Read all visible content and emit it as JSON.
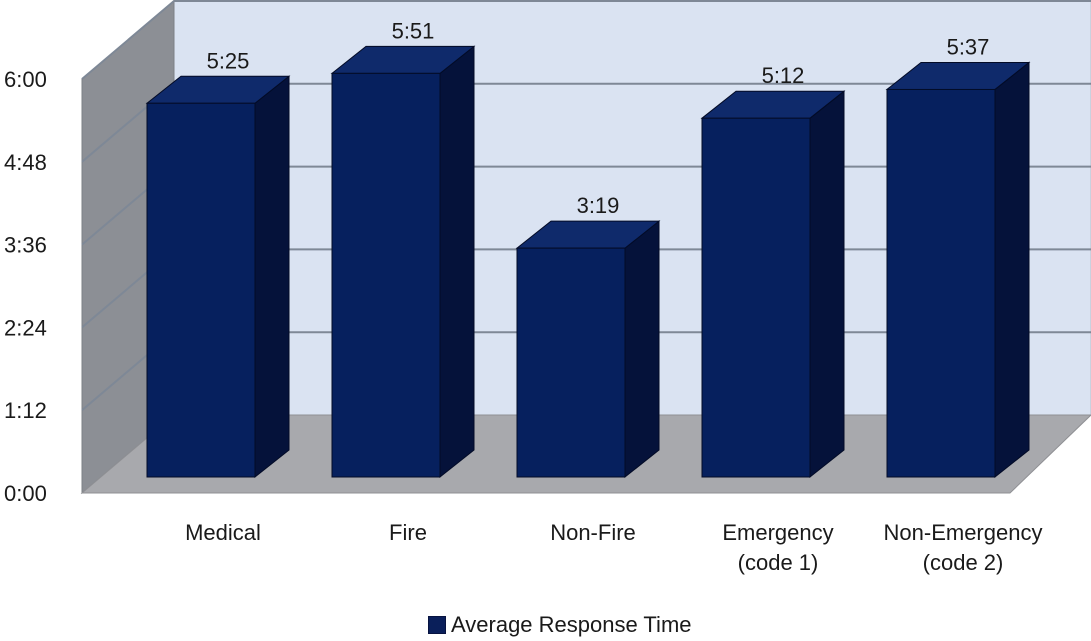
{
  "chart_data": {
    "type": "bar",
    "style": "3d",
    "categories": [
      "Medical",
      "Fire",
      "Non-Fire",
      "Emergency\n(code 1)",
      "Non-Emergency\n(code 2)"
    ],
    "series": [
      {
        "name": "Average Response Time",
        "values_seconds": [
          325,
          351,
          199,
          312,
          337
        ],
        "data_labels": [
          "5:25",
          "5:51",
          "3:19",
          "5:12",
          "5:37"
        ]
      }
    ],
    "y_unit": "m:ss",
    "ylim_seconds": [
      0,
      360
    ],
    "y_ticks_seconds": [
      0,
      72,
      144,
      216,
      288,
      360
    ],
    "y_tick_labels": [
      "0:00",
      "1:12",
      "2:24",
      "3:36",
      "4:48",
      "6:00"
    ],
    "grid": true,
    "legend": "bottom",
    "colors": {
      "bar_front": "#06205e",
      "bar_top": "#0f2a6b",
      "bar_side": "#05123a",
      "back_wall": "#dae3f2",
      "side_wall": "#8c8f95",
      "floor": "#a8a9ad",
      "gridline": "#7e8896"
    }
  }
}
